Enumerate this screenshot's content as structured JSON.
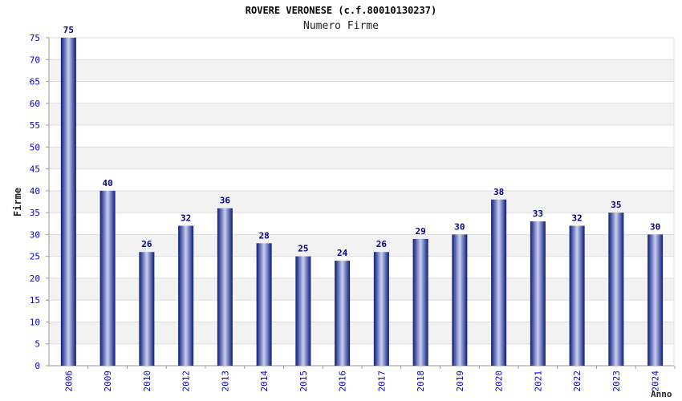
{
  "chart_data": {
    "type": "bar",
    "title": "ROVERE VERONESE (c.f.80010130237)",
    "subtitle": "Numero Firme",
    "xlabel": "Anno",
    "ylabel": "Firme",
    "categories": [
      "2006",
      "2009",
      "2010",
      "2012",
      "2013",
      "2014",
      "2015",
      "2016",
      "2017",
      "2018",
      "2019",
      "2020",
      "2021",
      "2022",
      "2023",
      "2024"
    ],
    "values": [
      75,
      40,
      26,
      32,
      36,
      28,
      25,
      24,
      26,
      29,
      30,
      38,
      33,
      32,
      35,
      30
    ],
    "ylim": [
      0,
      75
    ],
    "yticks": [
      0,
      5,
      10,
      15,
      20,
      25,
      30,
      35,
      40,
      45,
      50,
      55,
      60,
      65,
      70,
      75
    ],
    "grid": true,
    "legend": "none",
    "colors": {
      "bar_dark": "#0a1a7a",
      "bar_light": "#c9d0f2",
      "tick_label": "#0000cc",
      "band": "#f2f2f2",
      "gridline": "#dddddd",
      "data_label": "#000080"
    }
  }
}
